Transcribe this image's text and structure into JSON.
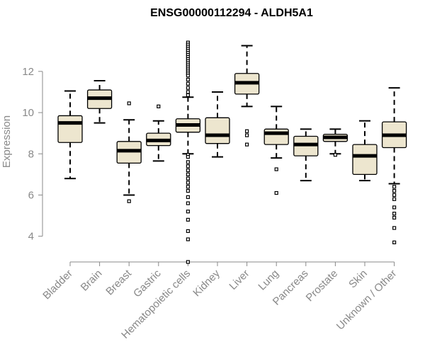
{
  "chart_data": {
    "type": "box",
    "title": "ENSG00000112294 - ALDH5A1",
    "ylabel": "Expression",
    "xlabel": "",
    "ylim": [
      3.0,
      13.5
    ],
    "yticks": [
      4,
      6,
      8,
      10,
      12
    ],
    "categories": [
      "Bladder",
      "Brain",
      "Breast",
      "Gastric",
      "Hematopoietic cells",
      "Kidney",
      "Liver",
      "Lung",
      "Pancreas",
      "Prostate",
      "Skin",
      "Unknown / Other"
    ],
    "boxes": [
      {
        "category": "Bladder",
        "whisker_low": 6.8,
        "q1": 8.55,
        "median": 9.5,
        "q3": 9.85,
        "whisker_high": 11.05,
        "outliers": []
      },
      {
        "category": "Brain",
        "whisker_low": 9.5,
        "q1": 10.2,
        "median": 10.7,
        "q3": 11.1,
        "whisker_high": 11.55,
        "outliers": []
      },
      {
        "category": "Breast",
        "whisker_low": 6.0,
        "q1": 7.55,
        "median": 8.15,
        "q3": 8.6,
        "whisker_high": 9.65,
        "outliers": [
          10.45,
          5.7
        ]
      },
      {
        "category": "Gastric",
        "whisker_low": 7.65,
        "q1": 8.4,
        "median": 8.65,
        "q3": 9.0,
        "whisker_high": 9.6,
        "outliers": [
          10.3
        ]
      },
      {
        "category": "Hematopoietic cells",
        "whisker_low": 8.0,
        "q1": 9.05,
        "median": 9.4,
        "q3": 9.7,
        "whisker_high": 10.75,
        "outliers": [
          13.4,
          13.3,
          13.2,
          13.1,
          13.0,
          12.9,
          12.8,
          12.7,
          12.6,
          12.5,
          12.4,
          12.3,
          12.2,
          12.1,
          12.0,
          11.9,
          11.8,
          11.6,
          11.4,
          11.2,
          11.0,
          10.85,
          7.95,
          7.85,
          7.6,
          7.4,
          7.2,
          7.0,
          6.8,
          6.6,
          6.4,
          6.2,
          5.9,
          5.6,
          5.2,
          4.8,
          4.25,
          3.85,
          2.75
        ]
      },
      {
        "category": "Kidney",
        "whisker_low": 7.85,
        "q1": 8.5,
        "median": 8.9,
        "q3": 9.75,
        "whisker_high": 11.0,
        "outliers": []
      },
      {
        "category": "Liver",
        "whisker_low": 10.3,
        "q1": 10.9,
        "median": 11.45,
        "q3": 11.9,
        "whisker_high": 13.25,
        "outliers": [
          9.1,
          8.9,
          8.45
        ]
      },
      {
        "category": "Lung",
        "whisker_low": 7.8,
        "q1": 8.45,
        "median": 9.0,
        "q3": 9.2,
        "whisker_high": 10.3,
        "outliers": [
          7.25,
          6.1
        ]
      },
      {
        "category": "Pancreas",
        "whisker_low": 6.7,
        "q1": 7.9,
        "median": 8.45,
        "q3": 8.85,
        "whisker_high": 9.2,
        "outliers": []
      },
      {
        "category": "Prostate",
        "whisker_low": 8.0,
        "q1": 8.6,
        "median": 8.8,
        "q3": 8.95,
        "whisker_high": 9.2,
        "outliers": [
          7.95
        ]
      },
      {
        "category": "Skin",
        "whisker_low": 6.7,
        "q1": 7.0,
        "median": 7.9,
        "q3": 8.45,
        "whisker_high": 9.6,
        "outliers": []
      },
      {
        "category": "Unknown / Other",
        "whisker_low": 6.55,
        "q1": 8.3,
        "median": 8.9,
        "q3": 9.55,
        "whisker_high": 11.2,
        "outliers": [
          6.4,
          6.2,
          6.0,
          5.8,
          5.4,
          5.1,
          4.9,
          4.4,
          3.7
        ]
      }
    ],
    "colors": {
      "box_fill": "#ede6cf",
      "box_stroke": "#000000",
      "axis": "#888888",
      "title": "#000000"
    },
    "grid": false,
    "legend": "none"
  }
}
